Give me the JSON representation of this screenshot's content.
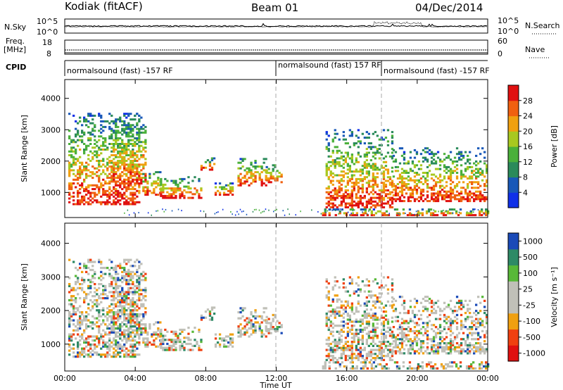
{
  "header": {
    "station": "Kodiak (fitACF)",
    "beam": "Beam 01",
    "date": "04/Dec/2014"
  },
  "top_panels": {
    "nsky_label": "N.Sky",
    "nsky_ticks": [
      "10^5",
      "10^0"
    ],
    "nsearch_label": "N.Search",
    "nsearch_ticks": [
      "10^5",
      "10^0"
    ],
    "freq_label_1": "Freq.",
    "freq_label_2": "[MHz]",
    "freq_ticks": [
      "18",
      "8"
    ],
    "nave_label": "Nave",
    "nave_ticks": [
      "60",
      "0"
    ],
    "cpid_label": "CPID",
    "cpid_segments": [
      {
        "text": "normalsound (fast) -157 RF",
        "start": 0
      },
      {
        "text": "normalsound (fast) 157 RF",
        "start": 12
      },
      {
        "text": "normalsound (fast) -157 RF",
        "start": 18
      }
    ]
  },
  "colors": {
    "power": [
      "#1030e8",
      "#1858b8",
      "#2a8a5a",
      "#4ab03a",
      "#a8c820",
      "#f0a010",
      "#f06010",
      "#e01010"
    ],
    "velocity": [
      "#e01010",
      "#f04010",
      "#f0a010",
      "#c0c0b8",
      "#c0c0b8",
      "#58b838",
      "#2e8a66",
      "#1a4ab8"
    ]
  },
  "chart_data": [
    {
      "type": "heatmap",
      "name": "power",
      "ylabel": "Slant Range [km]",
      "yticks": [
        1000,
        2000,
        3000,
        4000
      ],
      "ylim": [
        200,
        4600
      ],
      "xlim": [
        0,
        24
      ],
      "colorbar_label": "Power [dB]",
      "colorbar_ticks": [
        "4",
        "8",
        "12",
        "16",
        "20",
        "24",
        "28"
      ],
      "colorbar_range": [
        0,
        32
      ]
    },
    {
      "type": "heatmap",
      "name": "velocity",
      "ylabel": "Slant Range [km]",
      "yticks": [
        1000,
        2000,
        3000,
        4000
      ],
      "ylim": [
        200,
        4600
      ],
      "xlim": [
        0,
        24
      ],
      "colorbar_label": "Velocity [m s⁻¹]",
      "colorbar_ticks": [
        "1000",
        "500",
        "100",
        "25",
        "-25",
        "-100",
        "-500",
        "-1000"
      ]
    }
  ],
  "x_axis": {
    "ticks": [
      "00:00",
      "04:00",
      "08:00",
      "12:00",
      "16:00",
      "20:00",
      "00:00"
    ],
    "tick_hours": [
      0,
      4,
      8,
      12,
      16,
      20,
      24
    ],
    "label": "Time UT"
  },
  "echo_regions_ut_km": [
    [
      0.2,
      4.2,
      600,
      3500
    ],
    [
      2.6,
      4.6,
      1200,
      3500
    ],
    [
      4.4,
      5.4,
      900,
      1700
    ],
    [
      5.4,
      7.8,
      800,
      1500
    ],
    [
      7.7,
      8.5,
      1700,
      2100
    ],
    [
      8.5,
      9.5,
      900,
      1300
    ],
    [
      9.8,
      11.4,
      1200,
      2100
    ],
    [
      11.4,
      12.3,
      1300,
      1900
    ],
    [
      14.8,
      18.6,
      500,
      3000
    ],
    [
      18.6,
      24,
      700,
      2400
    ],
    [
      14.6,
      24,
      250,
      450
    ]
  ]
}
